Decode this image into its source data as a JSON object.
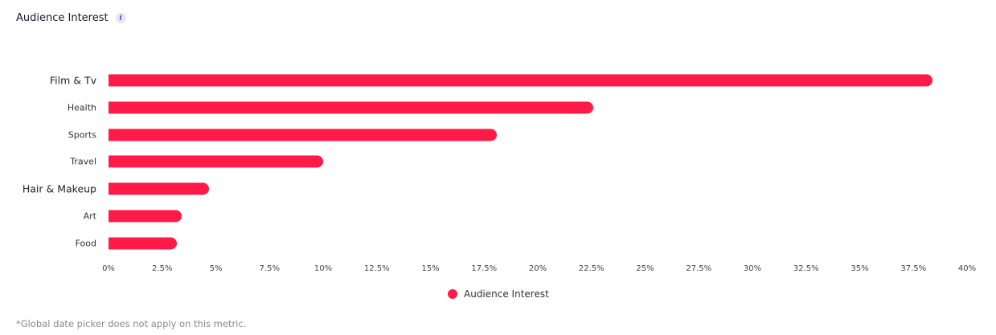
{
  "header": {
    "title": "Audience Interest",
    "info_icon": "info-icon"
  },
  "chart_data": {
    "type": "bar",
    "orientation": "horizontal",
    "title": "Audience Interest",
    "categories": [
      "Film & Tv",
      "Health",
      "Sports",
      "Travel",
      "Hair & Makeup",
      "Art",
      "Food"
    ],
    "values": [
      38.4,
      22.6,
      18.1,
      10.0,
      4.7,
      3.4,
      3.2
    ],
    "series": [
      {
        "name": "Audience Interest",
        "values": [
          38.4,
          22.6,
          18.1,
          10.0,
          4.7,
          3.4,
          3.2
        ],
        "color": "#ff1a47"
      }
    ],
    "xlabel": "",
    "ylabel": "",
    "xlim": [
      0,
      40
    ],
    "x_ticks": [
      "0%",
      "2.5%",
      "5%",
      "7.5%",
      "10%",
      "12.5%",
      "15%",
      "17.5%",
      "20%",
      "22.5%",
      "25%",
      "27.5%",
      "30%",
      "32.5%",
      "35%",
      "37.5%",
      "40%"
    ],
    "grid": false,
    "legend_position": "bottom"
  },
  "legend": {
    "label": "Audience Interest",
    "color": "#ff1a47"
  },
  "footnote": "*Global date picker does not apply on this metric."
}
